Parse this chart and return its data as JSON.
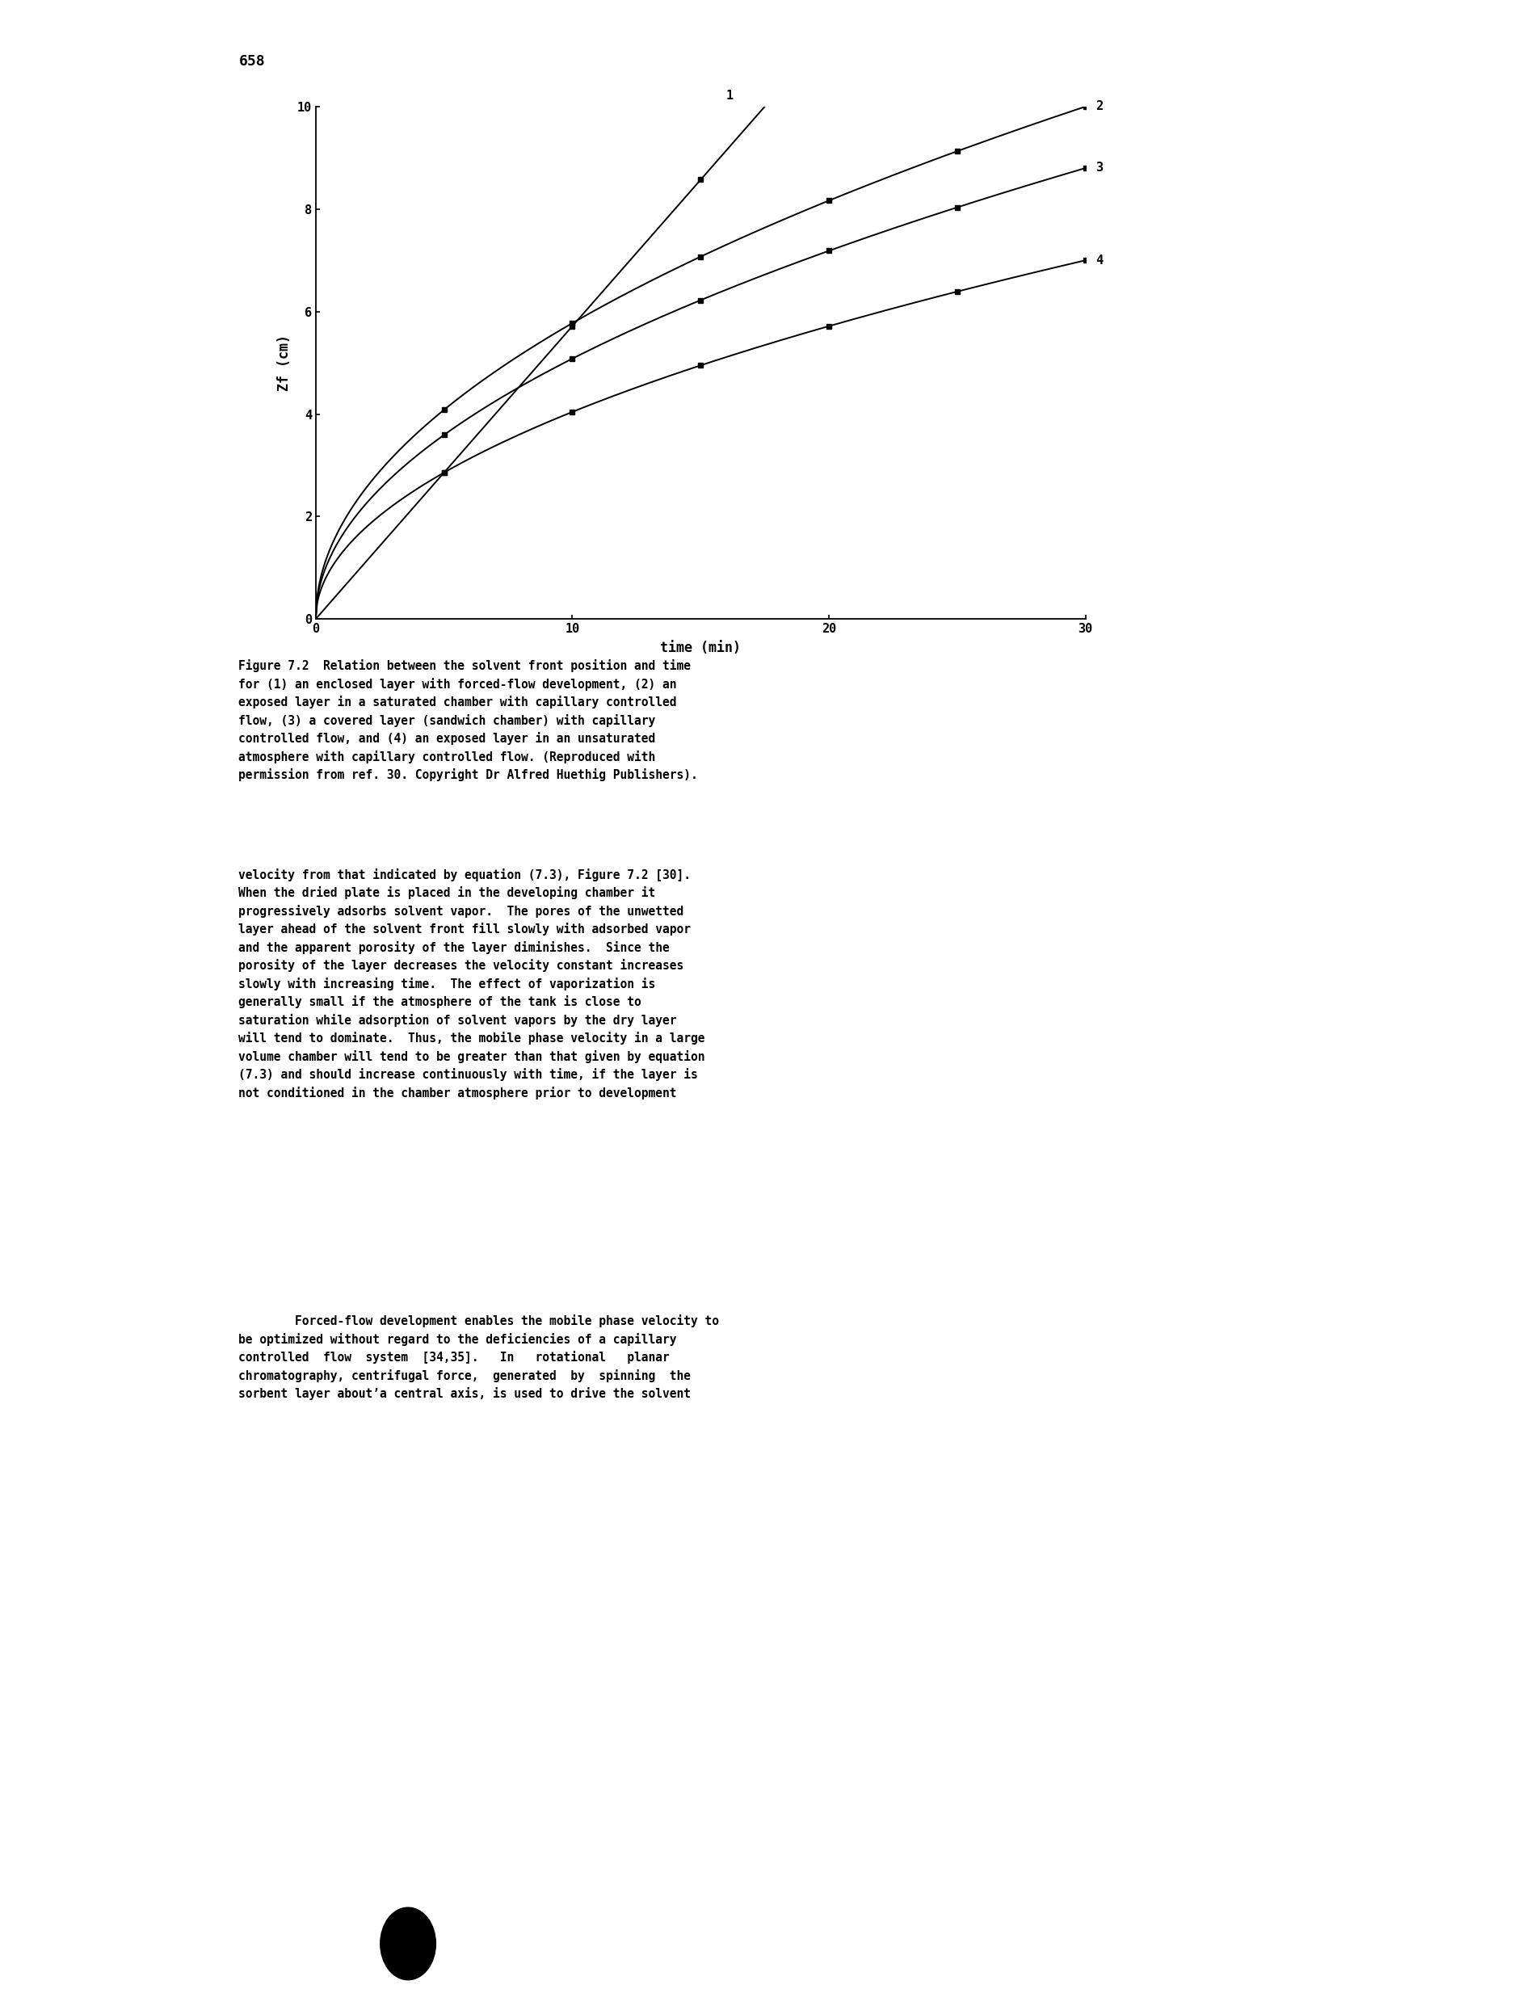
{
  "page_number": "658",
  "xlabel": "time (min)",
  "ylabel": "Zf (cm)",
  "xlim": [
    0,
    30
  ],
  "ylim": [
    0,
    10
  ],
  "xticks": [
    0,
    10,
    20,
    30
  ],
  "yticks": [
    0,
    2,
    4,
    6,
    8,
    10
  ],
  "line_color": "#000000",
  "background_color": "#ffffff",
  "curve1_label": "1",
  "curve2_label": "2",
  "curve3_label": "3",
  "curve4_label": "4",
  "caption": "Figure 7.2  Relation between the solvent front position and time\nfor (1) an enclosed layer with forced-flow development, (2) an\nexposed layer in a saturated chamber with capillary controlled\nflow, (3) a covered layer (sandwich chamber) with capillary\ncontrolled flow, and (4) an exposed layer in an unsaturated\natmosphere with capillary controlled flow. (Reproduced with\npermission from ref. 30. Copyright Dr Alfred Huethig Publishers).",
  "body_text1": "velocity from that indicated by equation (7.3), Figure 7.2 [30].\nWhen the dried plate is placed in the developing chamber it\nprogressively adsorbs solvent vapor.  The pores of the unwetted\nlayer ahead of the solvent front fill slowly with adsorbed vapor\nand the apparent porosity of the layer diminishes.  Since the\nporosity of the layer decreases the velocity constant increases\nslowly with increasing time.  The effect of vaporization is\ngenerally small if the atmosphere of the tank is close to\nsaturation while adsorption of solvent vapors by the dry layer\nwill tend to dominate.  Thus, the mobile phase velocity in a large\nvolume chamber will tend to be greater than that given by equation\n(7.3) and should increase continuously with time, if the layer is\nnot conditioned in the chamber atmosphere prior to development",
  "body_text2": "        Forced-flow development enables the mobile phase velocity to\nbe optimized without regard to the deficiencies of a capillary\ncontrolled  flow  system  [34,35].   In   rotational   planar\nchromatography, centrifugal force,  generated  by  spinning  the\nsorbent layer about’a central axis, is used to drive the solvent",
  "page_bg": "#f0ede8",
  "text_color": "#000000",
  "caption_fontsize": 10.5,
  "body_fontsize": 10.5,
  "axis_label_fontsize": 12,
  "tick_fontsize": 11,
  "page_number_fontsize": 13,
  "curve_label_fontsize": 11
}
